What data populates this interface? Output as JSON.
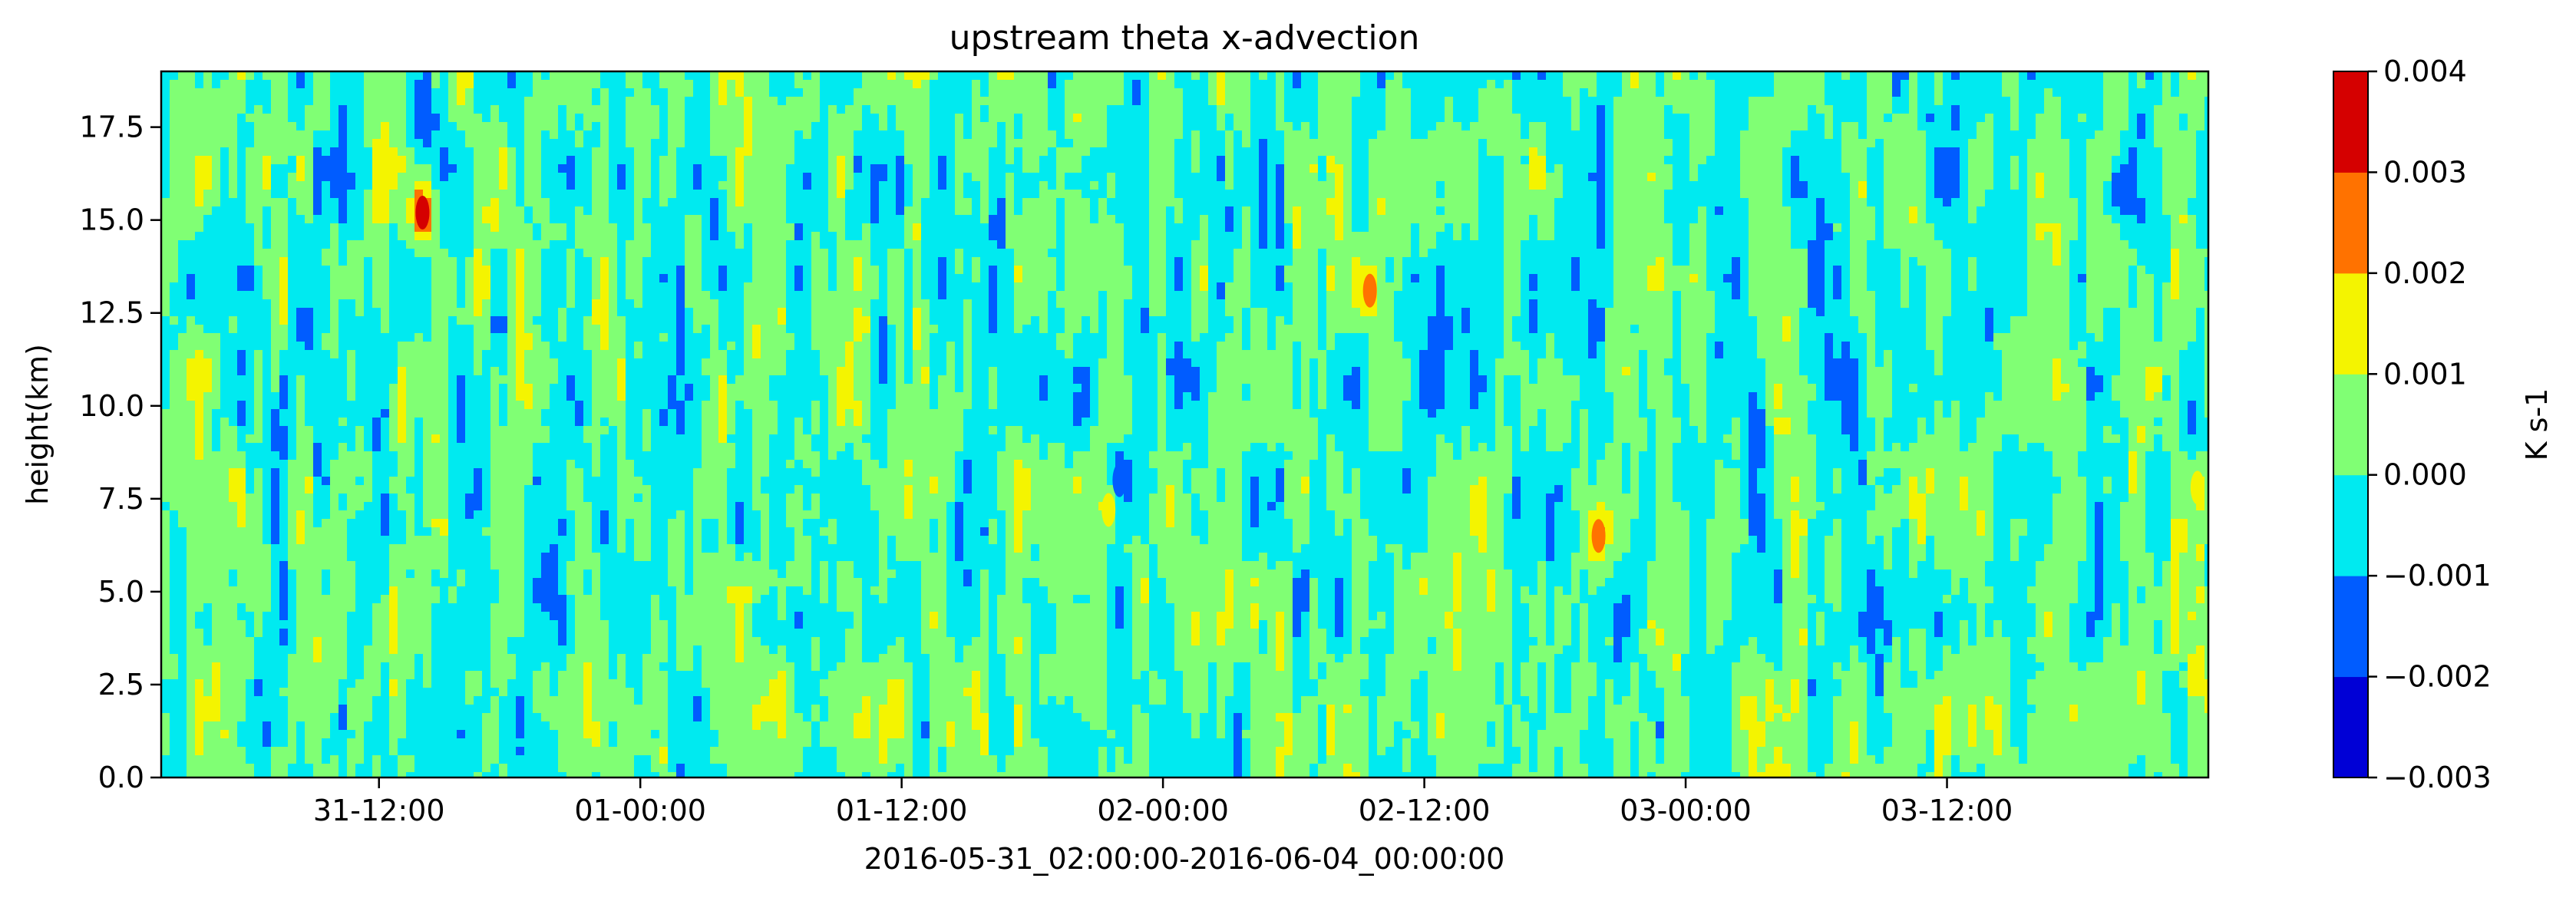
{
  "chart_data": {
    "type": "heatmap",
    "subtype": "filled-contour",
    "title": "upstream theta x-advection",
    "xlabel": "2016-05-31_02:00:00-2016-06-04_00:00:00",
    "ylabel": "height(km)",
    "x_range": [
      "2016-05-31 02:00",
      "2016-06-04 00:00"
    ],
    "ylim": [
      0,
      19
    ],
    "x_ticks": [
      "31-12:00",
      "01-00:00",
      "01-12:00",
      "02-00:00",
      "02-12:00",
      "03-00:00",
      "03-12:00"
    ],
    "y_ticks": [
      "0.0",
      "2.5",
      "5.0",
      "7.5",
      "10.0",
      "12.5",
      "15.0",
      "17.5"
    ],
    "colorbar": {
      "label": "K s-1",
      "levels": [
        -0.003,
        -0.002,
        -0.001,
        0.0,
        0.001,
        0.002,
        0.003,
        0.004
      ],
      "tick_labels": [
        "−0.003",
        "−0.002",
        "−0.001",
        "0.000",
        "0.001",
        "0.002",
        "0.003",
        "0.004"
      ],
      "colors": [
        "#0000d6",
        "#005cff",
        "#00eaf0",
        "#80ff74",
        "#f4f400",
        "#ff7200",
        "#d50000"
      ]
    },
    "features": [
      {
        "time": "2016-05-31 14:00",
        "height_km": 15.2,
        "level": 0.003
      },
      {
        "time": "2016-05-31 14:00",
        "height_km": 17.8,
        "level": -0.002
      },
      {
        "time": "2016-06-01 22:00",
        "height_km": 8.0,
        "level": -0.002
      },
      {
        "time": "2016-06-01 21:30",
        "height_km": 7.2,
        "level": 0.001
      },
      {
        "time": "2016-06-02 09:30",
        "height_km": 13.1,
        "level": 0.002
      },
      {
        "time": "2016-06-02 20:00",
        "height_km": 6.5,
        "level": 0.002
      },
      {
        "time": "2016-06-03 20:00",
        "height_km": 15.8,
        "level": -0.002
      },
      {
        "time": "2016-06-03 23:30",
        "height_km": 7.8,
        "level": 0.001
      }
    ],
    "grid": false,
    "legend": "colorbar-right"
  }
}
